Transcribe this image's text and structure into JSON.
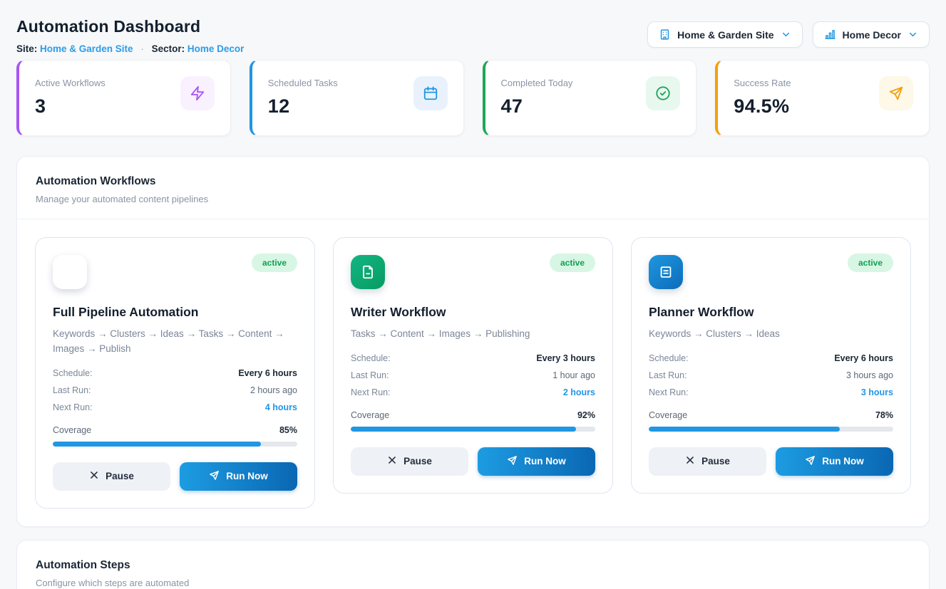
{
  "header": {
    "title": "Automation Dashboard",
    "site_label": "Site:",
    "site_value": "Home & Garden Site",
    "separator": "·",
    "sector_label": "Sector:",
    "sector_value": "Home Decor",
    "site_dropdown": {
      "label": "Home & Garden Site",
      "icon": "building-icon"
    },
    "sector_dropdown": {
      "label": "Home Decor",
      "icon": "bar-chart-icon"
    }
  },
  "stats": [
    {
      "label": "Active Workflows",
      "value": "3",
      "icon": "lightning-icon",
      "accent": "#a855f7",
      "icon_bg": "#faf1fe",
      "icon_color": "#a855f7"
    },
    {
      "label": "Scheduled Tasks",
      "value": "12",
      "icon": "calendar-icon",
      "accent": "#2196e3",
      "icon_bg": "#e9f2fc",
      "icon_color": "#2196e3"
    },
    {
      "label": "Completed Today",
      "value": "47",
      "icon": "check-circle-icon",
      "accent": "#1fa65a",
      "icon_bg": "#e8f8ef",
      "icon_color": "#1ca35b"
    },
    {
      "label": "Success Rate",
      "value": "94.5%",
      "icon": "send-icon",
      "accent": "#f59e0b",
      "icon_bg": "#fdf8e7",
      "icon_color": "#f59e0b"
    }
  ],
  "workflows_section": {
    "title": "Automation Workflows",
    "subtitle": "Manage your automated content pipelines",
    "cards": [
      {
        "name": "Full Pipeline Automation",
        "description": "Keywords → Clusters → Ideas → Tasks → Content → Images → Publish",
        "status": "active",
        "icon": "send-icon",
        "icon_color": "#5b43e0",
        "schedule_label": "Schedule:",
        "schedule": "Every 6 hours",
        "last_run_label": "Last Run:",
        "last_run": "2 hours ago",
        "next_run_label": "Next Run:",
        "next_run": "4 hours",
        "coverage_label": "Coverage",
        "coverage_text": "85%",
        "coverage_pct": 85,
        "pause_label": "Pause",
        "run_label": "Run Now"
      },
      {
        "name": "Writer Workflow",
        "description": "Tasks → Content → Images → Publishing",
        "status": "active",
        "icon": "file-text-icon",
        "icon_color": "#0fa96f",
        "schedule_label": "Schedule:",
        "schedule": "Every 3 hours",
        "last_run_label": "Last Run:",
        "last_run": "1 hour ago",
        "next_run_label": "Next Run:",
        "next_run": "2 hours",
        "coverage_label": "Coverage",
        "coverage_text": "92%",
        "coverage_pct": 92,
        "pause_label": "Pause",
        "run_label": "Run Now"
      },
      {
        "name": "Planner Workflow",
        "description": "Keywords → Clusters → Ideas",
        "status": "active",
        "icon": "notes-icon",
        "icon_color": "#1586d0",
        "schedule_label": "Schedule:",
        "schedule": "Every 6 hours",
        "last_run_label": "Last Run:",
        "last_run": "3 hours ago",
        "next_run_label": "Next Run:",
        "next_run": "3 hours",
        "coverage_label": "Coverage",
        "coverage_text": "78%",
        "coverage_pct": 78,
        "pause_label": "Pause",
        "run_label": "Run Now"
      }
    ]
  },
  "steps_section": {
    "title": "Automation Steps",
    "subtitle": "Configure which steps are automated"
  },
  "colors": {
    "page_bg": "#f6f8fa",
    "link_blue": "#2d9ce8",
    "progress_blue": "#2196e3",
    "badge_bg": "#d8f6e4",
    "badge_text": "#10a052",
    "run_gradient_start": "#1d9ce2",
    "run_gradient_end": "#0a67b3"
  }
}
